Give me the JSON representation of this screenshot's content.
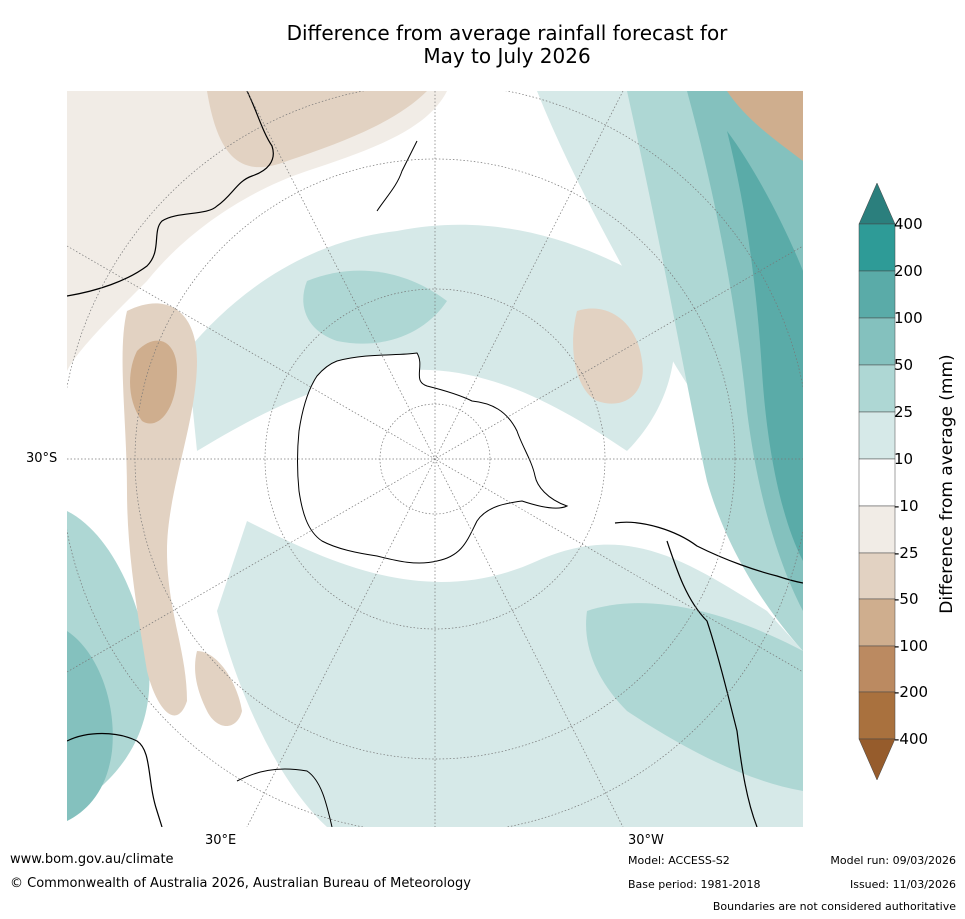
{
  "title_line1": "Difference from average rainfall forecast for",
  "title_line2": "May to July 2026",
  "map": {
    "projection": "south-polar-stereographic",
    "labels": {
      "lat_30s": "30°S",
      "lon_30e": "30°E",
      "lon_30w": "30°W"
    }
  },
  "legend": {
    "title": "Difference from average (mm)",
    "levels": [
      "400",
      "200",
      "100",
      "50",
      "25",
      "10",
      "-10",
      "-25",
      "-50",
      "-100",
      "-200",
      "-400"
    ],
    "colors": [
      "#2e8a87",
      "#3b9e9a",
      "#5aaba8",
      "#84c1be",
      "#aed7d4",
      "#d6e9e8",
      "#ffffff",
      "#f1ece6",
      "#e2d2c2",
      "#cfae8e",
      "#bb8a61",
      "#a9713e",
      "#965c2c"
    ]
  },
  "footer": {
    "website": "www.bom.gov.au/climate",
    "copyright": "© Commonwealth of Australia 2026, Australian Bureau of Meteorology",
    "model": "Model: ACCESS-S2",
    "base_period": "Base period: 1981-2018",
    "model_run": "Model run: 09/03/2026",
    "issued": "Issued: 11/03/2026",
    "disclaimer": "Boundaries are not considered authoritative"
  }
}
